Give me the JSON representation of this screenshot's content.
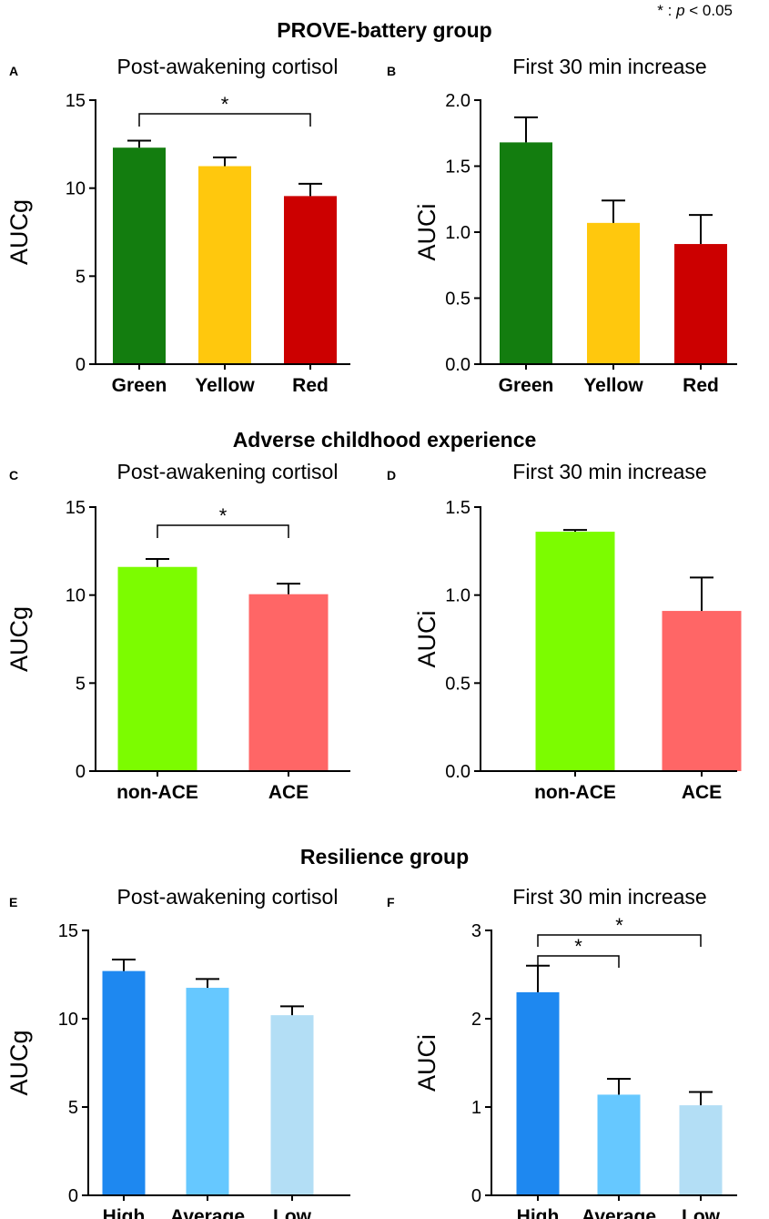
{
  "significance_note": {
    "symbol": "* : ",
    "p": "p",
    "rest": " < 0.05"
  },
  "sections": [
    {
      "title": "PROVE-battery group"
    },
    {
      "title": "Adverse childhood experience"
    },
    {
      "title": "Resilience group"
    }
  ],
  "chart_data": [
    {
      "panel": "A",
      "type": "bar",
      "title": "Post-awakening cortisol",
      "ylabel": "AUCg",
      "ylim": [
        0,
        15
      ],
      "yticks": [
        "0",
        "5",
        "10",
        "15"
      ],
      "ytick_values": [
        0,
        5,
        10,
        15
      ],
      "categories": [
        "Green",
        "Yellow",
        "Red"
      ],
      "values": [
        12.3,
        11.25,
        9.55
      ],
      "errors": [
        0.4,
        0.5,
        0.7
      ],
      "colors": [
        "#137d0f",
        "#ffc80d",
        "#cc0000"
      ],
      "brackets": [
        {
          "from": 0,
          "to": 2,
          "label": "*"
        }
      ]
    },
    {
      "panel": "B",
      "type": "bar",
      "title": "First 30 min increase",
      "ylabel": "AUCi",
      "ylim": [
        0,
        2
      ],
      "yticks": [
        "0.0",
        "0.5",
        "1.0",
        "1.5",
        "2.0"
      ],
      "ytick_values": [
        0,
        0.5,
        1,
        1.5,
        2
      ],
      "categories": [
        "Green",
        "Yellow",
        "Red"
      ],
      "values": [
        1.68,
        1.07,
        0.91
      ],
      "errors": [
        0.19,
        0.17,
        0.22
      ],
      "colors": [
        "#137d0f",
        "#ffc80d",
        "#cc0000"
      ],
      "brackets": []
    },
    {
      "panel": "C",
      "type": "bar",
      "title": "Post-awakening cortisol",
      "ylabel": "AUCg",
      "ylim": [
        0,
        15
      ],
      "yticks": [
        "0",
        "5",
        "10",
        "15"
      ],
      "ytick_values": [
        0,
        5,
        10,
        15
      ],
      "categories": [
        "non-ACE",
        "ACE"
      ],
      "values": [
        11.6,
        10.05
      ],
      "errors": [
        0.45,
        0.6
      ],
      "colors": [
        "#7cfc00",
        "#ff6666"
      ],
      "brackets": [
        {
          "from": 0,
          "to": 1,
          "label": "*"
        }
      ]
    },
    {
      "panel": "D",
      "type": "bar",
      "title": "First 30 min increase",
      "ylabel": "AUCi",
      "ylim": [
        0,
        1.5
      ],
      "yticks": [
        "0.0",
        "0.5",
        "1.0",
        "1.5"
      ],
      "ytick_values": [
        0,
        0.5,
        1,
        1.5
      ],
      "categories": [
        "non-ACE",
        "ACE"
      ],
      "values": [
        1.36,
        0.91
      ],
      "errors": [
        0.01,
        0.19
      ],
      "colors": [
        "#7cfc00",
        "#ff6666"
      ],
      "brackets": []
    },
    {
      "panel": "E",
      "type": "bar",
      "title": "Post-awakening cortisol",
      "ylabel": "AUCg",
      "ylim": [
        0,
        15
      ],
      "yticks": [
        "0",
        "5",
        "10",
        "15"
      ],
      "ytick_values": [
        0,
        5,
        10,
        15
      ],
      "categories": [
        "High",
        "Average",
        "Low"
      ],
      "values": [
        12.7,
        11.75,
        10.2
      ],
      "errors": [
        0.65,
        0.5,
        0.5
      ],
      "colors": [
        "#1e88f0",
        "#66c8ff",
        "#b3def5"
      ],
      "brackets": []
    },
    {
      "panel": "F",
      "type": "bar",
      "title": "First 30 min increase",
      "ylabel": "AUCi",
      "ylim": [
        0,
        3
      ],
      "yticks": [
        "0",
        "1",
        "2",
        "3"
      ],
      "ytick_values": [
        0,
        1,
        2,
        3
      ],
      "categories": [
        "High",
        "Average",
        "Low"
      ],
      "values": [
        2.3,
        1.14,
        1.02
      ],
      "errors": [
        0.3,
        0.18,
        0.15
      ],
      "colors": [
        "#1e88f0",
        "#66c8ff",
        "#b3def5"
      ],
      "brackets": [
        {
          "from": 0,
          "to": 1,
          "label": "*"
        },
        {
          "from": 0,
          "to": 2,
          "label": "*"
        }
      ]
    }
  ]
}
